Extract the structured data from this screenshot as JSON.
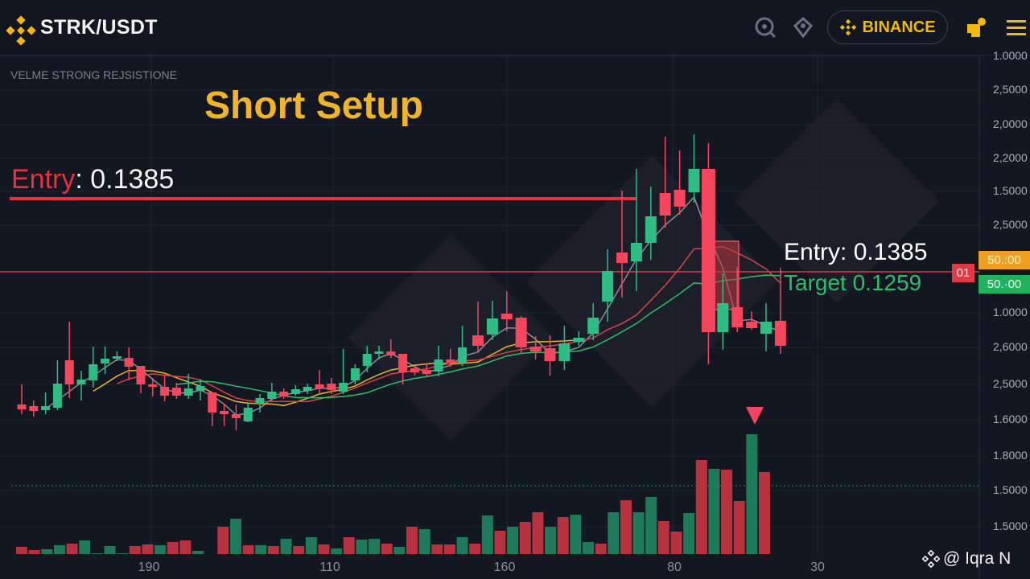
{
  "header": {
    "pair": "STRK/USDT",
    "exchange_label": "BINANCE",
    "icons": [
      "binance-logo-icon",
      "search-icon",
      "pen-icon",
      "binance-logo-icon",
      "gift-icon",
      "menu-icon"
    ]
  },
  "annotations": {
    "subtitle": "VELME STRONG REJSISTIONE",
    "setup_title": "Short Setup",
    "entry_left_word": "Entry",
    "entry_left_value": ": 0.1385",
    "entry_right": "Entry: 0.1385",
    "target_right": "Target 0.1259",
    "badge_01": "01",
    "price_badge_orange": "50.:00",
    "price_badge_green": "50.·00",
    "credit": "@ Iqra N"
  },
  "colors": {
    "background": "#131722",
    "up": "#2ebd85",
    "down": "#f6465d",
    "accent": "#f0b90b",
    "volume_up": "#1e7a5a",
    "volume_down": "#b8313f"
  },
  "chart_data": {
    "type": "candlestick",
    "title": "Short Setup",
    "entry": 0.1385,
    "target": 0.1259,
    "y_tick_labels": [
      "1.0000",
      "2,5000",
      "2,0000",
      "2,2000",
      "1.5000",
      "2,5000",
      "1.0000",
      "2,6000",
      "2,5000",
      "1.6000",
      "1.8000",
      "1.5000",
      "1.5000"
    ],
    "x_tick_labels": [
      "190",
      "110",
      "160",
      "80",
      "30"
    ],
    "grid": true,
    "candles": [
      {
        "o": 0.122,
        "h": 0.1245,
        "l": 0.1208,
        "c": 0.1214
      },
      {
        "o": 0.1218,
        "h": 0.1225,
        "l": 0.1205,
        "c": 0.1212
      },
      {
        "o": 0.1213,
        "h": 0.1235,
        "l": 0.1208,
        "c": 0.1218
      },
      {
        "o": 0.1216,
        "h": 0.1275,
        "l": 0.1213,
        "c": 0.1246
      },
      {
        "o": 0.1275,
        "h": 0.1323,
        "l": 0.1228,
        "c": 0.1245
      },
      {
        "o": 0.1245,
        "h": 0.1262,
        "l": 0.1225,
        "c": 0.1251
      },
      {
        "o": 0.125,
        "h": 0.1292,
        "l": 0.1241,
        "c": 0.127
      },
      {
        "o": 0.1271,
        "h": 0.1292,
        "l": 0.1258,
        "c": 0.1277
      },
      {
        "o": 0.1277,
        "h": 0.1286,
        "l": 0.1274,
        "c": 0.128
      },
      {
        "o": 0.1278,
        "h": 0.1291,
        "l": 0.125,
        "c": 0.1267
      },
      {
        "o": 0.1268,
        "h": 0.1268,
        "l": 0.1234,
        "c": 0.1245
      },
      {
        "o": 0.1245,
        "h": 0.1253,
        "l": 0.123,
        "c": 0.1242
      },
      {
        "o": 0.1242,
        "h": 0.1257,
        "l": 0.1224,
        "c": 0.1231
      },
      {
        "o": 0.1241,
        "h": 0.1247,
        "l": 0.1227,
        "c": 0.1231
      },
      {
        "o": 0.1231,
        "h": 0.1258,
        "l": 0.1227,
        "c": 0.124
      },
      {
        "o": 0.1237,
        "h": 0.1251,
        "l": 0.1225,
        "c": 0.1243
      },
      {
        "o": 0.1235,
        "h": 0.1235,
        "l": 0.1193,
        "c": 0.121
      },
      {
        "o": 0.1212,
        "h": 0.1221,
        "l": 0.1193,
        "c": 0.1208
      },
      {
        "o": 0.1208,
        "h": 0.122,
        "l": 0.1188,
        "c": 0.1203
      },
      {
        "o": 0.1199,
        "h": 0.1223,
        "l": 0.1198,
        "c": 0.1216
      },
      {
        "o": 0.1221,
        "h": 0.1233,
        "l": 0.121,
        "c": 0.1228
      },
      {
        "o": 0.1227,
        "h": 0.1247,
        "l": 0.1225,
        "c": 0.1236
      },
      {
        "o": 0.1236,
        "h": 0.124,
        "l": 0.1227,
        "c": 0.123
      },
      {
        "o": 0.1233,
        "h": 0.1244,
        "l": 0.1231,
        "c": 0.1239
      },
      {
        "o": 0.1237,
        "h": 0.1246,
        "l": 0.1233,
        "c": 0.1242
      },
      {
        "o": 0.1245,
        "h": 0.1263,
        "l": 0.1233,
        "c": 0.124
      },
      {
        "o": 0.1246,
        "h": 0.1253,
        "l": 0.1233,
        "c": 0.1238
      },
      {
        "o": 0.1236,
        "h": 0.1289,
        "l": 0.1233,
        "c": 0.1247
      },
      {
        "o": 0.125,
        "h": 0.127,
        "l": 0.1245,
        "c": 0.1265
      },
      {
        "o": 0.1268,
        "h": 0.1293,
        "l": 0.126,
        "c": 0.1283
      },
      {
        "o": 0.1283,
        "h": 0.1293,
        "l": 0.1276,
        "c": 0.1286
      },
      {
        "o": 0.1286,
        "h": 0.1301,
        "l": 0.1278,
        "c": 0.1281
      },
      {
        "o": 0.1283,
        "h": 0.1283,
        "l": 0.1245,
        "c": 0.126
      },
      {
        "o": 0.1265,
        "h": 0.1268,
        "l": 0.1256,
        "c": 0.126
      },
      {
        "o": 0.1263,
        "h": 0.1271,
        "l": 0.1255,
        "c": 0.1258
      },
      {
        "o": 0.1261,
        "h": 0.1293,
        "l": 0.1255,
        "c": 0.1276
      },
      {
        "o": 0.1276,
        "h": 0.1289,
        "l": 0.1267,
        "c": 0.1272
      },
      {
        "o": 0.1271,
        "h": 0.1318,
        "l": 0.1268,
        "c": 0.1291
      },
      {
        "o": 0.1306,
        "h": 0.1348,
        "l": 0.1286,
        "c": 0.1293
      },
      {
        "o": 0.1307,
        "h": 0.1349,
        "l": 0.13,
        "c": 0.1327
      },
      {
        "o": 0.1333,
        "h": 0.1361,
        "l": 0.1311,
        "c": 0.1326
      },
      {
        "o": 0.1328,
        "h": 0.133,
        "l": 0.1283,
        "c": 0.1291
      },
      {
        "o": 0.1292,
        "h": 0.1305,
        "l": 0.1276,
        "c": 0.1286
      },
      {
        "o": 0.129,
        "h": 0.1306,
        "l": 0.1256,
        "c": 0.1274
      },
      {
        "o": 0.1274,
        "h": 0.1318,
        "l": 0.1263,
        "c": 0.1296
      },
      {
        "o": 0.1298,
        "h": 0.1311,
        "l": 0.1293,
        "c": 0.1303
      },
      {
        "o": 0.1308,
        "h": 0.1346,
        "l": 0.13,
        "c": 0.1328
      },
      {
        "o": 0.1348,
        "h": 0.1413,
        "l": 0.1323,
        "c": 0.1386
      },
      {
        "o": 0.1409,
        "h": 0.1486,
        "l": 0.1353,
        "c": 0.1396
      },
      {
        "o": 0.1398,
        "h": 0.1513,
        "l": 0.1361,
        "c": 0.1421
      },
      {
        "o": 0.1421,
        "h": 0.1491,
        "l": 0.14,
        "c": 0.1454
      },
      {
        "o": 0.1483,
        "h": 0.1553,
        "l": 0.144,
        "c": 0.1455
      },
      {
        "o": 0.1487,
        "h": 0.1536,
        "l": 0.1456,
        "c": 0.1466
      },
      {
        "o": 0.1484,
        "h": 0.1556,
        "l": 0.1471,
        "c": 0.1513
      },
      {
        "o": 0.1513,
        "h": 0.1545,
        "l": 0.127,
        "c": 0.131
      },
      {
        "o": 0.131,
        "h": 0.1383,
        "l": 0.1288,
        "c": 0.1346
      },
      {
        "o": 0.1341,
        "h": 0.1391,
        "l": 0.131,
        "c": 0.1316
      },
      {
        "o": 0.1323,
        "h": 0.1336,
        "l": 0.1313,
        "c": 0.1315
      },
      {
        "o": 0.1308,
        "h": 0.1346,
        "l": 0.1286,
        "c": 0.1323
      },
      {
        "o": 0.1324,
        "h": 0.139,
        "l": 0.1283,
        "c": 0.1293
      }
    ],
    "volume": [
      {
        "v": 9,
        "up": false
      },
      {
        "v": 5,
        "up": false
      },
      {
        "v": 6,
        "up": true
      },
      {
        "v": 11,
        "up": true
      },
      {
        "v": 13,
        "up": false
      },
      {
        "v": 17,
        "up": true
      },
      {
        "v": 1,
        "up": true
      },
      {
        "v": 10,
        "up": true
      },
      {
        "v": 1,
        "up": true
      },
      {
        "v": 10,
        "up": false
      },
      {
        "v": 12,
        "up": false
      },
      {
        "v": 11,
        "up": true
      },
      {
        "v": 15,
        "up": false
      },
      {
        "v": 17,
        "up": false
      },
      {
        "v": 4,
        "up": true
      },
      {
        "v": 0,
        "up": true
      },
      {
        "v": 34,
        "up": false
      },
      {
        "v": 44,
        "up": true
      },
      {
        "v": 11,
        "up": false
      },
      {
        "v": 11,
        "up": true
      },
      {
        "v": 10,
        "up": false
      },
      {
        "v": 19,
        "up": true
      },
      {
        "v": 10,
        "up": false
      },
      {
        "v": 21,
        "up": true
      },
      {
        "v": 12,
        "up": false
      },
      {
        "v": 7,
        "up": true
      },
      {
        "v": 21,
        "up": false
      },
      {
        "v": 18,
        "up": true
      },
      {
        "v": 19,
        "up": true
      },
      {
        "v": 13,
        "up": false
      },
      {
        "v": 9,
        "up": true
      },
      {
        "v": 34,
        "up": false
      },
      {
        "v": 31,
        "up": true
      },
      {
        "v": 12,
        "up": false
      },
      {
        "v": 12,
        "up": false
      },
      {
        "v": 21,
        "up": true
      },
      {
        "v": 13,
        "up": false
      },
      {
        "v": 48,
        "up": true
      },
      {
        "v": 29,
        "up": false
      },
      {
        "v": 34,
        "up": true
      },
      {
        "v": 40,
        "up": false
      },
      {
        "v": 52,
        "up": false
      },
      {
        "v": 34,
        "up": true
      },
      {
        "v": 46,
        "up": false
      },
      {
        "v": 49,
        "up": true
      },
      {
        "v": 15,
        "up": true
      },
      {
        "v": 13,
        "up": false
      },
      {
        "v": 52,
        "up": true
      },
      {
        "v": 67,
        "up": false
      },
      {
        "v": 52,
        "up": true
      },
      {
        "v": 71,
        "up": true
      },
      {
        "v": 41,
        "up": false
      },
      {
        "v": 28,
        "up": false
      },
      {
        "v": 51,
        "up": true
      },
      {
        "v": 117,
        "up": false
      },
      {
        "v": 106,
        "up": true
      },
      {
        "v": 105,
        "up": false
      },
      {
        "v": 66,
        "up": false
      },
      {
        "v": 149,
        "up": true
      },
      {
        "v": 102,
        "up": false
      }
    ]
  }
}
